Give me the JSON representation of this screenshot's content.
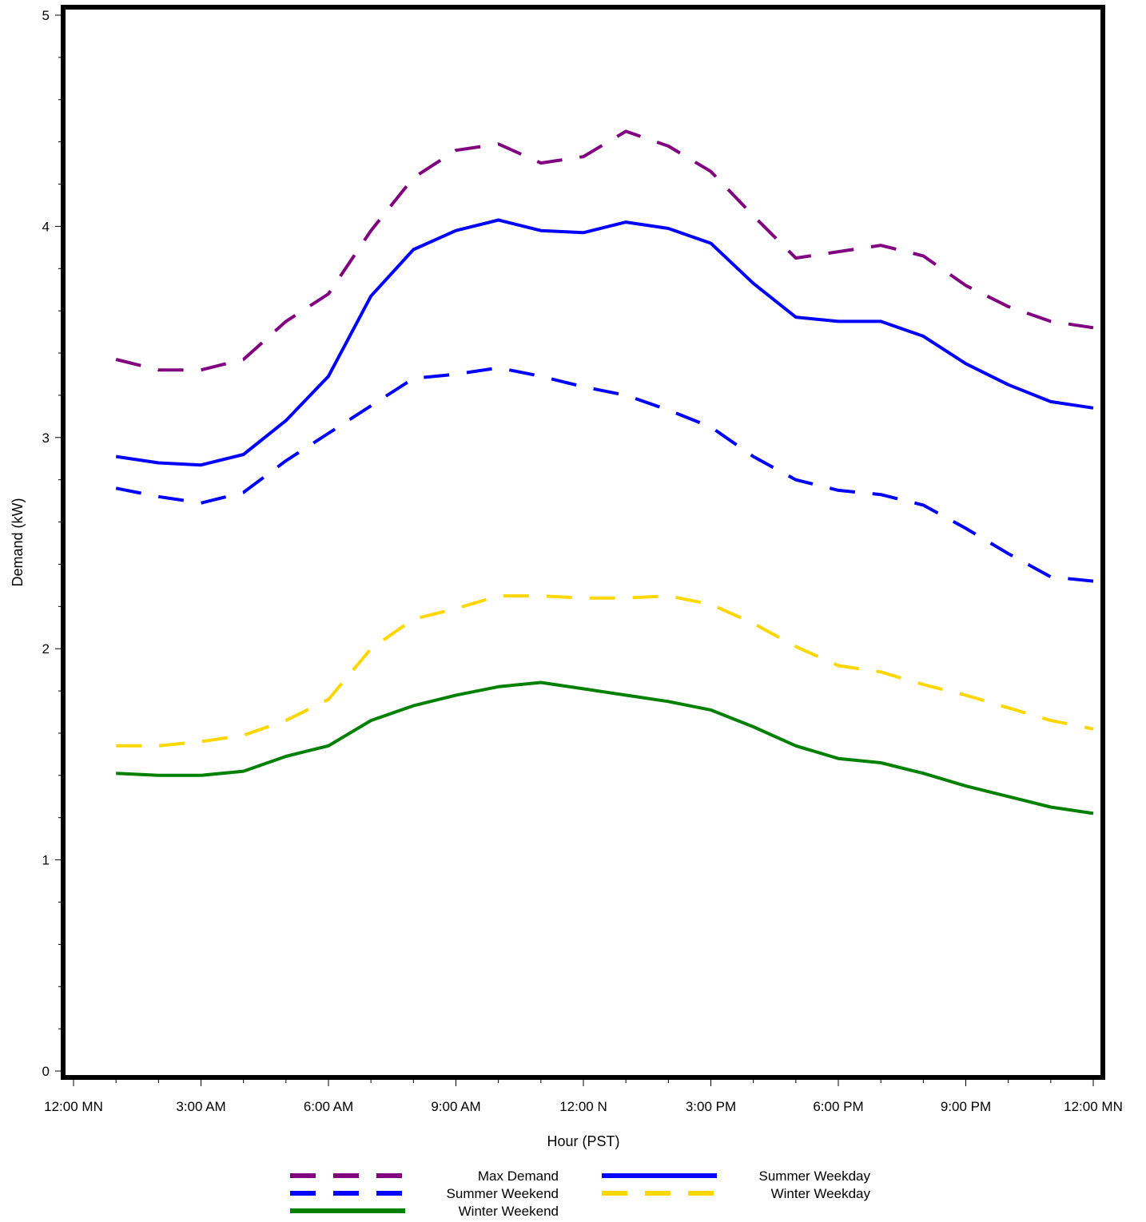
{
  "chart_data": {
    "type": "line",
    "xlabel": "Hour (PST)",
    "ylabel": "Demand (kW)",
    "xlim": [
      0,
      24
    ],
    "ylim": [
      0,
      5
    ],
    "x_ticks": [
      {
        "value": 0,
        "label": "12:00 MN"
      },
      {
        "value": 3,
        "label": "3:00 AM"
      },
      {
        "value": 6,
        "label": "6:00 AM"
      },
      {
        "value": 9,
        "label": "9:00 AM"
      },
      {
        "value": 12,
        "label": "12:00 N"
      },
      {
        "value": 15,
        "label": "3:00 PM"
      },
      {
        "value": 18,
        "label": "6:00 PM"
      },
      {
        "value": 21,
        "label": "9:00 PM"
      },
      {
        "value": 24,
        "label": "12:00 MN"
      }
    ],
    "y_ticks": [
      {
        "value": 0,
        "label": "0"
      },
      {
        "value": 1,
        "label": "1"
      },
      {
        "value": 2,
        "label": "2"
      },
      {
        "value": 3,
        "label": "3"
      },
      {
        "value": 4,
        "label": "4"
      },
      {
        "value": 5,
        "label": "5"
      }
    ],
    "x": [
      1,
      2,
      3,
      4,
      5,
      6,
      7,
      8,
      9,
      10,
      11,
      12,
      13,
      14,
      15,
      16,
      17,
      18,
      19,
      20,
      21,
      22,
      23,
      24
    ],
    "series": [
      {
        "name": "Max Demand",
        "color": "#800080",
        "style": "dashed",
        "values": [
          3.37,
          3.32,
          3.32,
          3.37,
          3.55,
          3.68,
          3.98,
          4.23,
          4.36,
          4.39,
          4.3,
          4.33,
          4.45,
          4.38,
          4.26,
          4.05,
          3.85,
          3.88,
          3.91,
          3.86,
          3.72,
          3.62,
          3.55,
          3.52
        ]
      },
      {
        "name": "Summer Weekday",
        "color": "#0000ff",
        "style": "solid",
        "values": [
          2.91,
          2.88,
          2.87,
          2.92,
          3.08,
          3.29,
          3.67,
          3.89,
          3.98,
          4.03,
          3.98,
          3.97,
          4.02,
          3.99,
          3.92,
          3.73,
          3.57,
          3.55,
          3.55,
          3.48,
          3.35,
          3.25,
          3.17,
          3.14
        ]
      },
      {
        "name": "Summer Weekend",
        "color": "#0000ff",
        "style": "dashed",
        "values": [
          2.76,
          2.72,
          2.69,
          2.74,
          2.89,
          3.02,
          3.15,
          3.28,
          3.3,
          3.33,
          3.29,
          3.24,
          3.2,
          3.13,
          3.05,
          2.91,
          2.8,
          2.75,
          2.73,
          2.68,
          2.57,
          2.45,
          2.34,
          2.32
        ]
      },
      {
        "name": "Winter Weekday",
        "color": "#ffd700",
        "style": "dashed",
        "values": [
          1.54,
          1.54,
          1.56,
          1.59,
          1.66,
          1.76,
          2.0,
          2.14,
          2.19,
          2.25,
          2.25,
          2.24,
          2.24,
          2.25,
          2.21,
          2.12,
          2.01,
          1.92,
          1.89,
          1.83,
          1.78,
          1.72,
          1.66,
          1.62
        ]
      },
      {
        "name": "Winter Weekend",
        "color": "#008000",
        "style": "solid",
        "values": [
          1.41,
          1.4,
          1.4,
          1.42,
          1.49,
          1.54,
          1.66,
          1.73,
          1.78,
          1.82,
          1.84,
          1.81,
          1.78,
          1.75,
          1.71,
          1.63,
          1.54,
          1.48,
          1.46,
          1.41,
          1.35,
          1.3,
          1.25,
          1.22
        ]
      }
    ],
    "legend": {
      "position": "bottom",
      "entries": [
        "Max Demand",
        "Summer Weekday",
        "Summer Weekend",
        "Winter Weekday",
        "Winter Weekend"
      ]
    },
    "grid": false
  }
}
